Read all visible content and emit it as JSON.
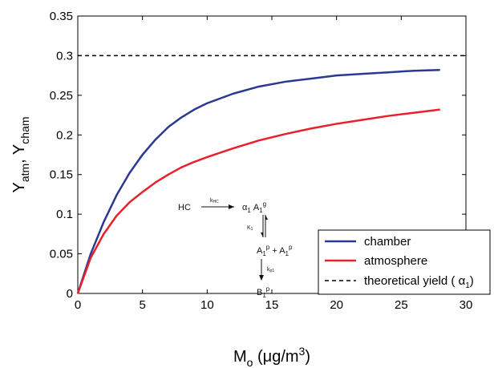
{
  "chart_data": {
    "type": "line",
    "title": "",
    "xlabel": {
      "main": "M",
      "sub": "o",
      "unit": " (μg/m",
      "sup": "3",
      "close": ")"
    },
    "ylabel": {
      "a": "Y",
      "a_sub": "atm",
      "sep": ", ",
      "b": "Y",
      "b_sub": "cham"
    },
    "xlim": [
      0,
      30
    ],
    "ylim": [
      0,
      0.35
    ],
    "x_ticks": [
      0,
      5,
      10,
      15,
      20,
      25,
      30
    ],
    "y_ticks": [
      0,
      0.05,
      0.1,
      0.15,
      0.2,
      0.25,
      0.3,
      0.35
    ],
    "x_tick_labels": [
      "0",
      "5",
      "10",
      "15",
      "20",
      "25",
      "30"
    ],
    "y_tick_labels": [
      "0",
      "0.05",
      "0.1",
      "0.15",
      "0.2",
      "0.25",
      "0.3",
      "0.35"
    ],
    "grid": false,
    "legend_position": "bottom-right",
    "series": [
      {
        "name": "chamber",
        "color": "#2b3990",
        "style": "solid",
        "x": [
          0,
          1,
          2,
          3,
          4,
          5,
          6,
          7,
          8,
          9,
          10,
          12,
          14,
          16,
          18,
          20,
          22,
          24,
          26,
          28
        ],
        "y": [
          0,
          0.05,
          0.09,
          0.124,
          0.152,
          0.175,
          0.194,
          0.21,
          0.222,
          0.232,
          0.24,
          0.252,
          0.261,
          0.267,
          0.271,
          0.275,
          0.277,
          0.279,
          0.281,
          0.282
        ]
      },
      {
        "name": "atmosphere",
        "color": "#e8202a",
        "style": "solid",
        "x": [
          0,
          1,
          2,
          3,
          4,
          5,
          6,
          7,
          8,
          9,
          10,
          12,
          14,
          16,
          18,
          20,
          22,
          24,
          26,
          28
        ],
        "y": [
          0,
          0.045,
          0.075,
          0.098,
          0.115,
          0.128,
          0.14,
          0.15,
          0.159,
          0.166,
          0.172,
          0.183,
          0.193,
          0.201,
          0.208,
          0.214,
          0.219,
          0.224,
          0.228,
          0.232
        ]
      },
      {
        "name_parts": {
          "text": "theoretical yield ( ",
          "greek": "α",
          "sub": "1",
          "close": ")"
        },
        "color": "#000000",
        "style": "dashed",
        "x": [
          0,
          30
        ],
        "y": [
          0.3,
          0.3
        ]
      }
    ],
    "annotations": {
      "reactant": "HC",
      "k_hc": "k",
      "k_hc_sub": "HC",
      "alpha": "α",
      "alpha_sub": "1",
      "a1": "A",
      "a1_sub": "1",
      "a1_sup": "g",
      "kappa": "K",
      "kappa_sub": "1",
      "ap_a": "A",
      "ap_a_sub": "1",
      "ap_a_sup": "p",
      "plus": " + ",
      "ap_b": "A",
      "ap_b_sub": "1",
      "ap_b_sup": "p",
      "kp": "k",
      "kp_sub": "p1",
      "b": "B",
      "b_sub": "1",
      "b_sup": "p"
    }
  }
}
